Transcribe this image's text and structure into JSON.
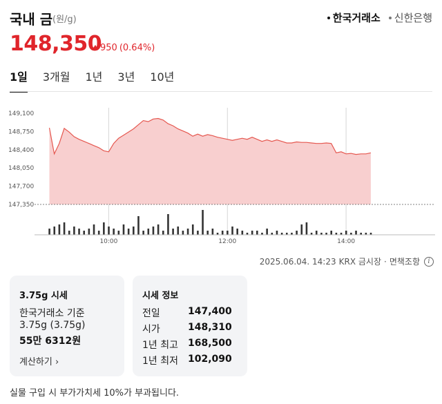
{
  "header": {
    "title": "국내 금",
    "unit": "(원/g)",
    "sources": [
      {
        "label": "한국거래소",
        "active": true
      },
      {
        "label": "신한은행",
        "active": false
      }
    ]
  },
  "price": {
    "value": "148,350",
    "change": "950",
    "change_pct": "(0.64%)"
  },
  "tabs": [
    {
      "label": "1일",
      "active": true
    },
    {
      "label": "3개월",
      "active": false
    },
    {
      "label": "1년",
      "active": false
    },
    {
      "label": "3년",
      "active": false
    },
    {
      "label": "10년",
      "active": false
    }
  ],
  "colors": {
    "up": "#e0252b",
    "line": "#e5574f",
    "fill": "#f8cfcf",
    "volume": "#333333"
  },
  "chart_data": {
    "type": "area",
    "ylim": [
      147350,
      149100
    ],
    "yticks": [
      "149,100",
      "148,750",
      "148,400",
      "148,050",
      "147,700",
      "147,350"
    ],
    "ytick_values": [
      149100,
      148750,
      148400,
      148050,
      147700,
      147350
    ],
    "xticks": [
      "10:00",
      "12:00",
      "14:00"
    ],
    "xtick_values": [
      "10:00",
      "12:00",
      "14:00"
    ],
    "x": [
      "09:00",
      "09:05",
      "09:10",
      "09:15",
      "09:20",
      "09:25",
      "09:30",
      "09:35",
      "09:40",
      "09:45",
      "09:50",
      "09:55",
      "10:00",
      "10:05",
      "10:10",
      "10:15",
      "10:20",
      "10:25",
      "10:30",
      "10:35",
      "10:40",
      "10:45",
      "10:50",
      "10:55",
      "11:00",
      "11:05",
      "11:10",
      "11:15",
      "11:20",
      "11:25",
      "11:30",
      "11:35",
      "11:40",
      "11:45",
      "11:50",
      "11:55",
      "12:00",
      "12:05",
      "12:10",
      "12:15",
      "12:20",
      "12:25",
      "12:30",
      "12:35",
      "12:40",
      "12:45",
      "12:50",
      "12:55",
      "13:00",
      "13:05",
      "13:10",
      "13:15",
      "13:20",
      "13:25",
      "13:30",
      "13:35",
      "13:40",
      "13:45",
      "13:50",
      "13:55",
      "14:00",
      "14:05",
      "14:10",
      "14:15",
      "14:20",
      "14:25"
    ],
    "values": [
      148820,
      148320,
      148520,
      148810,
      148740,
      148650,
      148600,
      148560,
      148520,
      148480,
      148440,
      148380,
      148360,
      148520,
      148620,
      148680,
      148740,
      148800,
      148880,
      148960,
      148940,
      148990,
      149000,
      148970,
      148900,
      148860,
      148800,
      148760,
      148720,
      148660,
      148700,
      148660,
      148690,
      148670,
      148640,
      148620,
      148600,
      148580,
      148600,
      148620,
      148600,
      148640,
      148600,
      148560,
      148590,
      148560,
      148590,
      148560,
      148530,
      148530,
      148550,
      148540,
      148540,
      148530,
      148520,
      148520,
      148530,
      148520,
      148340,
      148360,
      148320,
      148330,
      148310,
      148320,
      148320,
      148340
    ],
    "volume": [
      3,
      4,
      5,
      6,
      2,
      4,
      3,
      2,
      3,
      5,
      2,
      6,
      4,
      3,
      2,
      5,
      3,
      4,
      9,
      2,
      3,
      4,
      5,
      2,
      10,
      3,
      4,
      2,
      3,
      5,
      2,
      12,
      2,
      3,
      1,
      2,
      2,
      4,
      3,
      2,
      1,
      2,
      2,
      1,
      3,
      1,
      2,
      1,
      1,
      1,
      2,
      5,
      6,
      1,
      2,
      1,
      1,
      2,
      1,
      1,
      2,
      1,
      2,
      1,
      1,
      1
    ],
    "baseline": 147350
  },
  "source_line": {
    "timestamp": "2025.06.04. 14:23",
    "exchange": "KRX 금시장",
    "disclaimer": "면책조항"
  },
  "card_375": {
    "title": "3.75g 시세",
    "line1": "한국거래소 기준",
    "line2": "3.75g (3.75g)",
    "line3": "55만 6312원",
    "link": "계산하기"
  },
  "card_info": {
    "title": "시세 정보",
    "rows": [
      {
        "label": "전일",
        "value": "147,400"
      },
      {
        "label": "시가",
        "value": "148,310"
      },
      {
        "label": "1년 최고",
        "value": "168,500"
      },
      {
        "label": "1년 최저",
        "value": "102,090"
      }
    ]
  },
  "footnote": "실물 구입 시 부가가치세 10%가 부과됩니다."
}
